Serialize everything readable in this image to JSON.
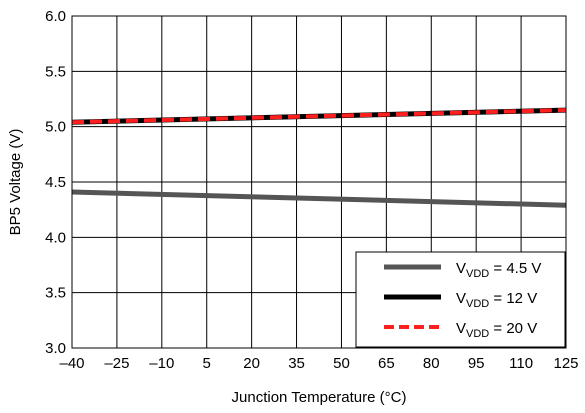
{
  "chart_data": {
    "type": "line",
    "xlabel": "Junction Temperature (°C)",
    "ylabel": "BP5 Voltage (V)",
    "xlim": [
      -40,
      125
    ],
    "ylim": [
      3.0,
      6.0
    ],
    "x_ticks": [
      -40,
      -25,
      -10,
      5,
      20,
      35,
      50,
      65,
      80,
      95,
      110,
      125
    ],
    "x_tick_labels": [
      "–40",
      "–25",
      "–10",
      "5",
      "20",
      "35",
      "50",
      "65",
      "80",
      "95",
      "110",
      "125"
    ],
    "y_ticks": [
      3.0,
      3.5,
      4.0,
      4.5,
      5.0,
      5.5,
      6.0
    ],
    "y_tick_labels": [
      "3.0",
      "3.5",
      "4.0",
      "4.5",
      "5.0",
      "5.5",
      "6.0"
    ],
    "grid": true,
    "legend_position": "bottom-right",
    "series": [
      {
        "name_main": "V",
        "name_sub": "VDD",
        "name_rest": " = 4.5 V",
        "color": "#555555",
        "style": "solid",
        "x": [
          -40,
          125
        ],
        "y": [
          4.41,
          4.29
        ]
      },
      {
        "name_main": "V",
        "name_sub": "VDD",
        "name_rest": " = 12 V",
        "color": "#000000",
        "style": "solid",
        "x": [
          -40,
          125
        ],
        "y": [
          5.04,
          5.15
        ]
      },
      {
        "name_main": "V",
        "name_sub": "VDD",
        "name_rest": " = 20 V",
        "color": "#ff1f1f",
        "style": "dashed",
        "x": [
          -40,
          125
        ],
        "y": [
          5.04,
          5.15
        ]
      }
    ]
  }
}
